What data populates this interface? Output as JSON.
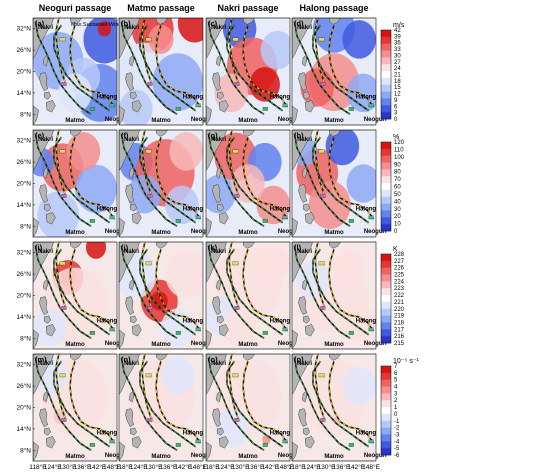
{
  "chart_data": {
    "type": "heatmap",
    "columns": [
      "Neoguri passage",
      "Matmo passage",
      "Nakri passage",
      "Halong passage"
    ],
    "x_ticks": [
      "118°E",
      "124°E",
      "130°E",
      "136°E",
      "142°E",
      "148°E"
    ],
    "y_ticks": [
      "32°N",
      "26°N",
      "20°N",
      "14°N",
      "8°N"
    ],
    "x_range": [
      116,
      150
    ],
    "y_range": [
      5,
      35
    ],
    "panel_labels": [
      "(a)",
      "(b)",
      "(c)",
      "(d)",
      "(e)",
      "(f)",
      "(g)",
      "(h)",
      "(i)",
      "(j)",
      "(k)",
      "(l)",
      "(m)",
      "(n)",
      "(o)",
      "(p)"
    ],
    "typhoon_names": [
      "Nakri",
      "Matmo",
      "Neoguri",
      "Halong"
    ],
    "legend_text": "Max.Sustained Wind",
    "rows": [
      {
        "unit": "m/s",
        "colorbar_ticks": [
          "42",
          "39",
          "36",
          "33",
          "30",
          "27",
          "24",
          "21",
          "18",
          "15",
          "12",
          "9",
          "6",
          "3",
          "0"
        ],
        "range": [
          0,
          42
        ]
      },
      {
        "unit": "%",
        "colorbar_ticks": [
          "120",
          "110",
          "100",
          "90",
          "80",
          "70",
          "60",
          "50",
          "40",
          "30",
          "20",
          "10",
          "0"
        ],
        "range": [
          0,
          120
        ]
      },
      {
        "unit": "K",
        "colorbar_ticks": [
          "228",
          "227",
          "226",
          "225",
          "224",
          "223",
          "222",
          "221",
          "220",
          "219",
          "218",
          "217",
          "216",
          "215"
        ],
        "range": [
          215,
          228
        ]
      },
      {
        "unit": "10⁻⁵ s⁻¹",
        "colorbar_ticks": [
          "7",
          "6",
          "5",
          "4",
          "3",
          "2",
          "1",
          "0",
          "-1",
          "-2",
          "-3",
          "-4",
          "-5",
          "-6"
        ],
        "range": [
          -6,
          7
        ]
      }
    ],
    "tracks": {
      "Neoguri": [
        [
          147,
          9
        ],
        [
          143,
          11
        ],
        [
          139,
          13
        ],
        [
          134,
          15.5
        ],
        [
          129.5,
          19
        ],
        [
          126.5,
          23
        ],
        [
          124.5,
          26.5
        ],
        [
          124.5,
          30
        ],
        [
          127.5,
          33
        ]
      ],
      "Matmo": [
        [
          139.5,
          8
        ],
        [
          135,
          10
        ],
        [
          131,
          13
        ],
        [
          127,
          16.5
        ],
        [
          124.5,
          20
        ],
        [
          122.5,
          23.5
        ],
        [
          120.5,
          26.5
        ],
        [
          118,
          30
        ],
        [
          117,
          34
        ]
      ],
      "Nakri": [
        [
          129,
          17
        ],
        [
          127.5,
          20
        ],
        [
          126.5,
          23
        ],
        [
          126,
          26
        ],
        [
          125.5,
          29
        ],
        [
          125.5,
          32
        ],
        [
          126.5,
          35
        ]
      ],
      "Halong": [
        [
          149,
          10
        ],
        [
          146.5,
          12.5
        ],
        [
          143,
          14
        ],
        [
          139,
          14.5
        ],
        [
          135.5,
          16
        ],
        [
          133,
          19
        ],
        [
          131.5,
          22.5
        ],
        [
          131,
          26
        ],
        [
          131.5,
          29.5
        ],
        [
          133,
          33
        ]
      ]
    },
    "colormap": [
      "#2b36c8",
      "#3f5ae0",
      "#6283ee",
      "#8ea9f4",
      "#b7c9f8",
      "#dfe6fb",
      "#ffffff",
      "#fbe1e1",
      "#f7b8b8",
      "#f48e8e",
      "#f06262",
      "#e83434",
      "#d71414"
    ]
  }
}
